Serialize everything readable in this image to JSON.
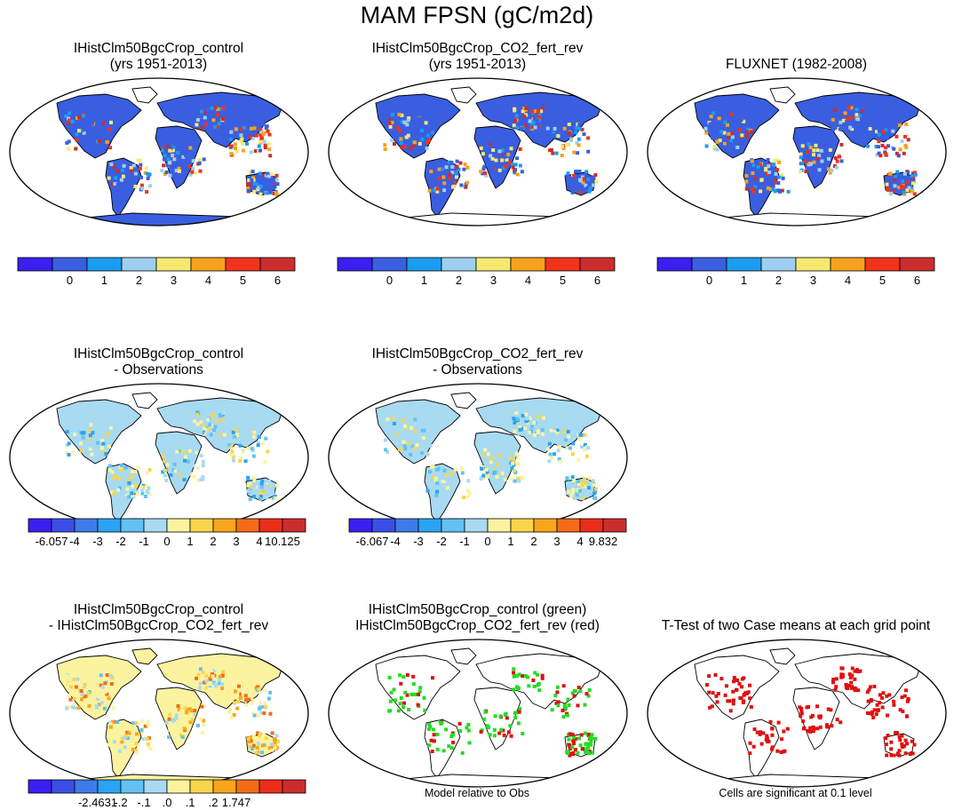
{
  "title": "MAM FPSN (gC/m2d)",
  "panels": [
    {
      "id": "p1",
      "line1": "IHistClm50BgcCrop_control",
      "line2": "(yrs 1951-2013)",
      "kind": "field",
      "dot": "p1"
    },
    {
      "id": "p2",
      "line1": "IHistClm50BgcCrop_CO2_fert_rev",
      "line2": "(yrs 1951-2013)",
      "kind": "field",
      "dot": "p2"
    },
    {
      "id": "p3",
      "line1": "FLUXNET (1982-2008)",
      "line2": "",
      "kind": "field",
      "dot": "p3"
    },
    {
      "id": "p4",
      "line1": "IHistClm50BgcCrop_control",
      "line2": "- Observations",
      "kind": "diff",
      "dot": "p4"
    },
    {
      "id": "p5",
      "line1": "IHistClm50BgcCrop_CO2_fert_rev",
      "line2": "- Observations",
      "kind": "diff",
      "dot": "p5"
    },
    {
      "id": "p6",
      "line1": "IHistClm50BgcCrop_control",
      "line2": "- IHistClm50BgcCrop_CO2_fert_rev",
      "kind": "diff2",
      "dot": "p6"
    },
    {
      "id": "p7",
      "line1": "IHistClm50BgcCrop_control (green)",
      "line2": "IHistClm50BgcCrop_CO2_fert_rev (red)",
      "kind": "sig2",
      "dot": "p7"
    },
    {
      "id": "p8",
      "line1": "T-Test of two Case means at each grid point",
      "line2": "",
      "kind": "sig1",
      "dot": "p8"
    }
  ],
  "colorbars": {
    "abs": {
      "colors": [
        "#3b1ff0",
        "#3a5ee0",
        "#1a9cf0",
        "#9dcff0",
        "#f6e970",
        "#f6a21e",
        "#f2321a",
        "#cb2d2d"
      ],
      "labels": [
        "0",
        "1",
        "2",
        "3",
        "4",
        "5",
        "6"
      ]
    },
    "diff_control": {
      "colors": [
        "#3b1ff0",
        "#3b4fe8",
        "#3e7be6",
        "#2aa4f4",
        "#63c2f2",
        "#a8daf2",
        "#fbf3a0",
        "#f9d54c",
        "#f9a51d",
        "#f46c17",
        "#ed2d1a",
        "#cb2d2d"
      ],
      "labels": [
        "-6.057",
        "-4",
        "-3",
        "-2",
        "-1",
        "0",
        "1",
        "2",
        "3",
        "4",
        "10.125"
      ]
    },
    "diff_fert": {
      "colors": [
        "#3b1ff0",
        "#3b4fe8",
        "#3e7be6",
        "#2aa4f4",
        "#63c2f2",
        "#a8daf2",
        "#fbf3a0",
        "#f9d54c",
        "#f9a51d",
        "#f46c17",
        "#ed2d1a",
        "#cb2d2d"
      ],
      "labels": [
        "-6.067",
        "-4",
        "-3",
        "-2",
        "-1",
        "0",
        "1",
        "2",
        "3",
        "4",
        "9.832"
      ]
    },
    "diff_cases": {
      "colors": [
        "#3b1ff0",
        "#3b4fe8",
        "#3e7be6",
        "#2aa4f4",
        "#63c2f2",
        "#a8daf2",
        "#fbf3a0",
        "#f9d54c",
        "#f9a51d",
        "#f46c17",
        "#ed2d1a",
        "#cb2d2d"
      ],
      "labels": [
        "-2.4631",
        "-.2",
        "-.1",
        ".0",
        ".1",
        ".2",
        "1.747"
      ]
    }
  },
  "notes": {
    "model_obs": "Model relative to Obs",
    "significance": "Cells are significant at 0.1 level"
  },
  "chart_data": [
    {
      "type": "heatmap",
      "title": "IHistClm50BgcCrop_control (yrs 1951-2013)",
      "colorbar_ticks": [
        0,
        1,
        2,
        3,
        4,
        5,
        6
      ]
    },
    {
      "type": "heatmap",
      "title": "IHistClm50BgcCrop_CO2_fert_rev (yrs 1951-2013)",
      "colorbar_ticks": [
        0,
        1,
        2,
        3,
        4,
        5,
        6
      ]
    },
    {
      "type": "heatmap",
      "title": "FLUXNET (1982-2008)",
      "colorbar_ticks": [
        0,
        1,
        2,
        3,
        4,
        5,
        6
      ]
    },
    {
      "type": "heatmap",
      "title": "IHistClm50BgcCrop_control - Observations",
      "colorbar_min": -6.057,
      "colorbar_max": 10.125,
      "colorbar_ticks": [
        -4,
        -3,
        -2,
        -1,
        0,
        1,
        2,
        3,
        4
      ]
    },
    {
      "type": "heatmap",
      "title": "IHistClm50BgcCrop_CO2_fert_rev - Observations",
      "colorbar_min": -6.067,
      "colorbar_max": 9.832,
      "colorbar_ticks": [
        -4,
        -3,
        -2,
        -1,
        0,
        1,
        2,
        3,
        4
      ]
    },
    {
      "type": "heatmap",
      "title": "IHistClm50BgcCrop_control - IHistClm50BgcCrop_CO2_fert_rev",
      "colorbar_min": -2.4631,
      "colorbar_max": 1.747,
      "colorbar_ticks": [
        -0.2,
        -0.1,
        0.0,
        0.1,
        0.2
      ]
    },
    {
      "type": "heatmap",
      "title": "IHistClm50BgcCrop_control (green) IHistClm50BgcCrop_CO2_fert_rev (red)",
      "series": [
        {
          "name": "IHistClm50BgcCrop_control",
          "color": "#22dd22"
        },
        {
          "name": "IHistClm50BgcCrop_CO2_fert_rev",
          "color": "#e01010"
        }
      ]
    },
    {
      "type": "heatmap",
      "title": "T-Test of two Case means at each grid point",
      "significance_level": 0.1
    }
  ]
}
